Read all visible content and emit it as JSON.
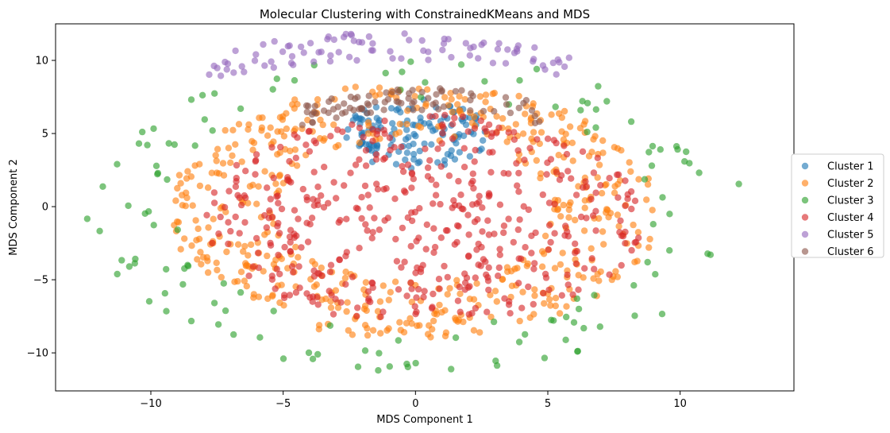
{
  "chart_data": {
    "type": "scatter",
    "title": "Molecular Clustering with ConstrainedKMeans and MDS",
    "xlabel": "MDS Component 1",
    "ylabel": "MDS Component 2",
    "xlim": [
      -13.6,
      14.3
    ],
    "ylim": [
      -12.6,
      12.5
    ],
    "xticks": [
      -10,
      -5,
      0,
      5,
      10
    ],
    "yticks": [
      -10,
      -5,
      0,
      5,
      10
    ],
    "legend_position": "right, outside plot",
    "series": [
      {
        "name": "Cluster 1",
        "color": "#1f77b4",
        "shape": "disk",
        "cx": 0.0,
        "cy": 5.0,
        "rx": 2.8,
        "ry": 2.4,
        "n": 130,
        "seed": 11
      },
      {
        "name": "Cluster 2",
        "color": "#ff7f0e",
        "shape": "ring",
        "cx": 0.0,
        "cy": -0.3,
        "rx": 9.3,
        "ry": 8.8,
        "rin": 0.55,
        "n": 520,
        "seed": 22
      },
      {
        "name": "Cluster 3",
        "color": "#2ca02c",
        "shape": "ring",
        "cx": 0.0,
        "cy": -0.5,
        "rx": 12.5,
        "ry": 10.8,
        "rin": 0.72,
        "n": 130,
        "seed": 33
      },
      {
        "name": "Cluster 4",
        "color": "#d62728",
        "shape": "disk",
        "cx": 0.3,
        "cy": -0.9,
        "rx": 8.3,
        "ry": 7.2,
        "n": 470,
        "seed": 44
      },
      {
        "name": "Cluster 5",
        "color": "#9467bd",
        "shape": "arc",
        "cx": -1.0,
        "cy": 9.6,
        "rx": 7.0,
        "ry": 1.9,
        "n": 90,
        "seed": 55
      },
      {
        "name": "Cluster 6",
        "color": "#8c564b",
        "shape": "arc",
        "cx": 0.2,
        "cy": 6.3,
        "rx": 4.5,
        "ry": 1.5,
        "n": 80,
        "seed": 66
      }
    ]
  }
}
